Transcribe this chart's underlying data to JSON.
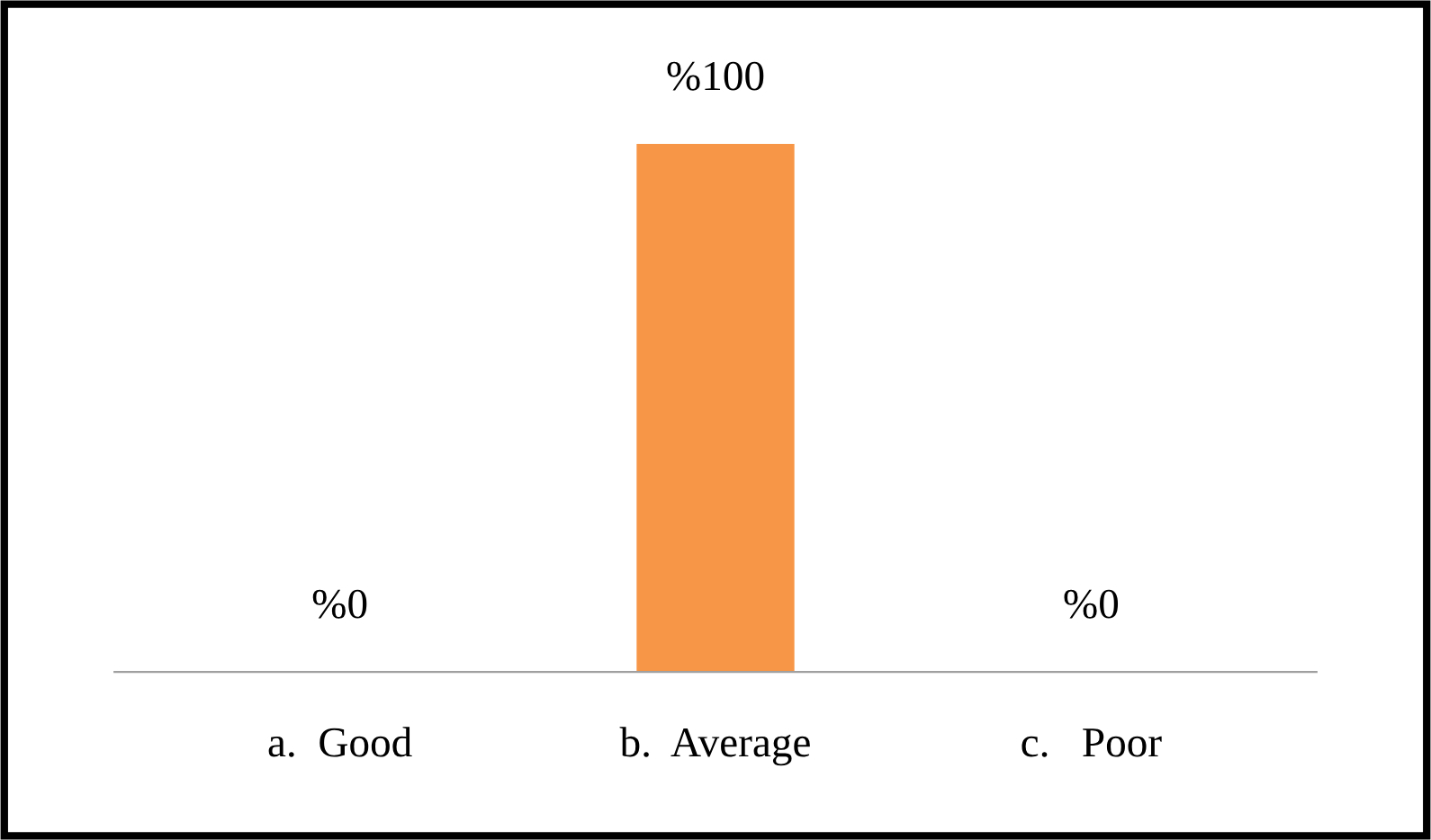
{
  "chart_data": {
    "type": "bar",
    "categories": [
      "a.  Good",
      "b.  Average",
      "c.   Poor"
    ],
    "values": [
      0,
      100,
      0
    ],
    "value_labels": [
      "%0",
      "%100",
      "%0"
    ],
    "color": "#f79646",
    "grid": false,
    "legend": false
  }
}
